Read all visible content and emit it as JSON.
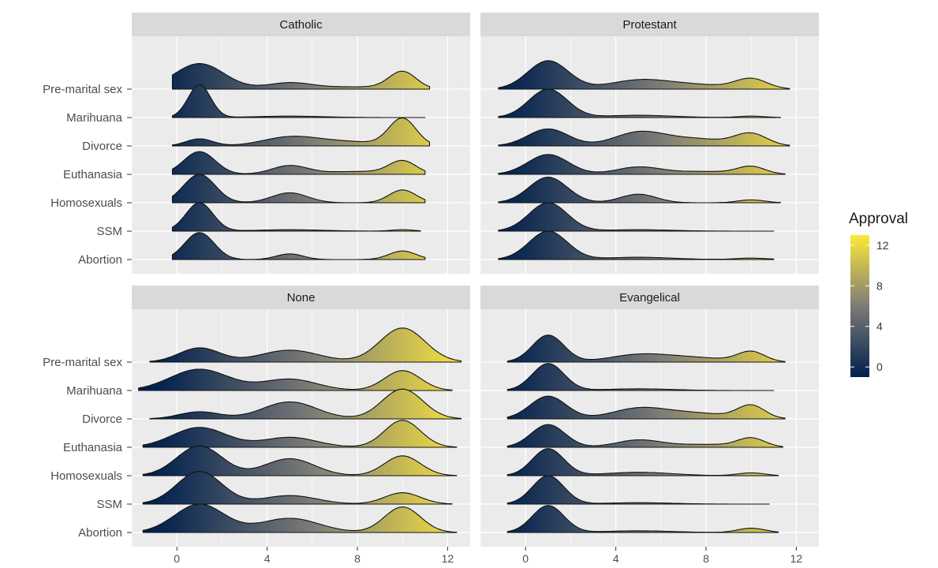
{
  "chart_data": {
    "type": "ridgeline",
    "x_ticks": [
      0,
      4,
      8,
      12
    ],
    "xlim": [
      -2,
      13
    ],
    "y_categories": [
      "Pre-marital sex",
      "Marihuana",
      "Divorce",
      "Euthanasia",
      "Homosexuals",
      "SSM",
      "Abortion"
    ],
    "fill_scale": {
      "title": "Approval",
      "breaks": [
        0,
        4,
        8,
        12
      ],
      "range": [
        -1,
        13
      ],
      "low_color": "#00204d",
      "mid_color": "#7c7b78",
      "high_color": "#fee838"
    },
    "grid": true,
    "legend_position": "right",
    "panels": [
      {
        "title": "Catholic",
        "rows": [
          {
            "category": "Pre-marital sex",
            "range": [
              -0.2,
              11.2
            ],
            "peaks": [
              [
                1.0,
                1.1,
                0.9
              ],
              [
                5.0,
                1.0,
                0.22
              ],
              [
                8.0,
                1.5,
                0.08
              ],
              [
                10.0,
                0.6,
                0.6
              ]
            ]
          },
          {
            "category": "Marihuana",
            "range": [
              -0.2,
              11.0
            ],
            "peaks": [
              [
                1.0,
                0.5,
                1.15
              ],
              [
                5.0,
                1.5,
                0.05
              ]
            ]
          },
          {
            "category": "Divorce",
            "range": [
              -0.2,
              11.2
            ],
            "peaks": [
              [
                1.0,
                0.6,
                0.25
              ],
              [
                5.0,
                1.2,
                0.3
              ],
              [
                10.0,
                0.6,
                0.95
              ],
              [
                7.5,
                1.5,
                0.15
              ]
            ]
          },
          {
            "category": "Euthanasia",
            "range": [
              -0.2,
              11.0
            ],
            "peaks": [
              [
                1.0,
                0.7,
                0.8
              ],
              [
                5.0,
                0.8,
                0.3
              ],
              [
                8.0,
                1.5,
                0.1
              ],
              [
                10.0,
                0.6,
                0.45
              ]
            ]
          },
          {
            "category": "Homosexuals",
            "range": [
              -0.2,
              11.0
            ],
            "peaks": [
              [
                1.0,
                0.7,
                1.0
              ],
              [
                5.0,
                0.8,
                0.35
              ],
              [
                10.0,
                0.6,
                0.45
              ]
            ]
          },
          {
            "category": "SSM",
            "range": [
              -0.2,
              10.8
            ],
            "peaks": [
              [
                1.0,
                0.6,
                1.0
              ],
              [
                5.0,
                1.5,
                0.05
              ],
              [
                10.0,
                0.5,
                0.05
              ]
            ]
          },
          {
            "category": "Abortion",
            "range": [
              -0.2,
              11.0
            ],
            "peaks": [
              [
                1.0,
                0.65,
                0.95
              ],
              [
                5.0,
                0.6,
                0.2
              ],
              [
                10.0,
                0.6,
                0.3
              ]
            ]
          }
        ]
      },
      {
        "title": "Protestant",
        "rows": [
          {
            "category": "Pre-marital sex",
            "range": [
              -1.2,
              11.7
            ],
            "peaks": [
              [
                1.0,
                0.9,
                1.0
              ],
              [
                5.0,
                1.3,
                0.3
              ],
              [
                7.5,
                1.5,
                0.15
              ],
              [
                10.0,
                0.7,
                0.35
              ]
            ]
          },
          {
            "category": "Marihuana",
            "range": [
              -1.2,
              11.3
            ],
            "peaks": [
              [
                1.0,
                0.85,
                1.0
              ],
              [
                5.0,
                1.5,
                0.08
              ],
              [
                10.0,
                0.6,
                0.05
              ]
            ]
          },
          {
            "category": "Divorce",
            "range": [
              -1.2,
              11.7
            ],
            "peaks": [
              [
                1.0,
                0.9,
                0.6
              ],
              [
                5.0,
                1.1,
                0.45
              ],
              [
                7.5,
                1.5,
                0.25
              ],
              [
                10.0,
                0.7,
                0.4
              ]
            ]
          },
          {
            "category": "Euthanasia",
            "range": [
              -1.2,
              11.5
            ],
            "peaks": [
              [
                1.0,
                0.9,
                0.7
              ],
              [
                5.0,
                1.0,
                0.25
              ],
              [
                8.0,
                1.5,
                0.1
              ],
              [
                10.0,
                0.6,
                0.25
              ]
            ]
          },
          {
            "category": "Homosexuals",
            "range": [
              -1.2,
              11.3
            ],
            "peaks": [
              [
                1.0,
                0.85,
                0.9
              ],
              [
                5.0,
                0.8,
                0.3
              ],
              [
                10.0,
                0.6,
                0.1
              ]
            ]
          },
          {
            "category": "SSM",
            "range": [
              -1.2,
              11.0
            ],
            "peaks": [
              [
                1.0,
                0.85,
                1.0
              ],
              [
                5.0,
                1.5,
                0.05
              ]
            ]
          },
          {
            "category": "Abortion",
            "range": [
              -1.2,
              11.0
            ],
            "peaks": [
              [
                1.0,
                0.85,
                1.0
              ],
              [
                5.0,
                1.5,
                0.08
              ],
              [
                10.0,
                0.7,
                0.05
              ]
            ]
          }
        ]
      },
      {
        "title": "None",
        "rows": [
          {
            "category": "Pre-marital sex",
            "range": [
              -1.2,
              12.6
            ],
            "peaks": [
              [
                1.0,
                0.9,
                0.5
              ],
              [
                5.0,
                1.3,
                0.42
              ],
              [
                10.0,
                1.0,
                1.2
              ]
            ]
          },
          {
            "category": "Marihuana",
            "range": [
              -1.7,
              12.2
            ],
            "peaks": [
              [
                1.0,
                1.3,
                0.75
              ],
              [
                5.0,
                1.2,
                0.4
              ],
              [
                10.0,
                0.8,
                0.7
              ]
            ]
          },
          {
            "category": "Divorce",
            "range": [
              -1.2,
              12.6
            ],
            "peaks": [
              [
                1.0,
                0.9,
                0.25
              ],
              [
                5.0,
                1.2,
                0.6
              ],
              [
                10.0,
                0.9,
                1.05
              ]
            ]
          },
          {
            "category": "Euthanasia",
            "range": [
              -1.5,
              12.4
            ],
            "peaks": [
              [
                1.0,
                1.2,
                0.7
              ],
              [
                5.0,
                1.2,
                0.35
              ],
              [
                10.0,
                0.8,
                0.95
              ]
            ]
          },
          {
            "category": "Homosexuals",
            "range": [
              -1.5,
              12.4
            ],
            "peaks": [
              [
                1.0,
                1.0,
                1.05
              ],
              [
                5.0,
                1.1,
                0.6
              ],
              [
                10.0,
                0.8,
                0.7
              ]
            ]
          },
          {
            "category": "SSM",
            "range": [
              -1.5,
              12.2
            ],
            "peaks": [
              [
                1.0,
                1.0,
                1.15
              ],
              [
                5.0,
                1.2,
                0.3
              ],
              [
                10.0,
                0.8,
                0.4
              ]
            ]
          },
          {
            "category": "Abortion",
            "range": [
              -1.5,
              12.4
            ],
            "peaks": [
              [
                1.0,
                1.1,
                1.0
              ],
              [
                5.0,
                1.3,
                0.5
              ],
              [
                10.0,
                0.8,
                0.9
              ]
            ]
          }
        ]
      },
      {
        "title": "Evangelical",
        "rows": [
          {
            "category": "Pre-marital sex",
            "range": [
              -0.8,
              11.5
            ],
            "peaks": [
              [
                1.0,
                0.7,
                0.95
              ],
              [
                5.0,
                1.3,
                0.25
              ],
              [
                7.5,
                1.5,
                0.15
              ],
              [
                10.0,
                0.6,
                0.35
              ]
            ]
          },
          {
            "category": "Marihuana",
            "range": [
              -0.8,
              11.0
            ],
            "peaks": [
              [
                1.0,
                0.7,
                0.95
              ],
              [
                5.0,
                1.5,
                0.06
              ]
            ]
          },
          {
            "category": "Divorce",
            "range": [
              -0.8,
              11.5
            ],
            "peaks": [
              [
                1.0,
                0.8,
                0.8
              ],
              [
                5.0,
                1.2,
                0.35
              ],
              [
                7.5,
                1.5,
                0.2
              ],
              [
                10.0,
                0.6,
                0.45
              ]
            ]
          },
          {
            "category": "Euthanasia",
            "range": [
              -0.8,
              11.4
            ],
            "peaks": [
              [
                1.0,
                0.75,
                0.8
              ],
              [
                5.0,
                1.0,
                0.25
              ],
              [
                8.0,
                1.5,
                0.1
              ],
              [
                10.0,
                0.6,
                0.3
              ]
            ]
          },
          {
            "category": "Homosexuals",
            "range": [
              -0.8,
              11.2
            ],
            "peaks": [
              [
                1.0,
                0.7,
                0.95
              ],
              [
                5.0,
                1.5,
                0.12
              ],
              [
                10.0,
                0.6,
                0.1
              ]
            ]
          },
          {
            "category": "SSM",
            "range": [
              -0.8,
              10.8
            ],
            "peaks": [
              [
                1.0,
                0.7,
                1.0
              ],
              [
                5.0,
                1.5,
                0.05
              ]
            ]
          },
          {
            "category": "Abortion",
            "range": [
              -0.8,
              11.2
            ],
            "peaks": [
              [
                1.0,
                0.7,
                0.95
              ],
              [
                5.0,
                1.5,
                0.06
              ],
              [
                10.0,
                0.6,
                0.15
              ]
            ]
          }
        ]
      }
    ]
  }
}
